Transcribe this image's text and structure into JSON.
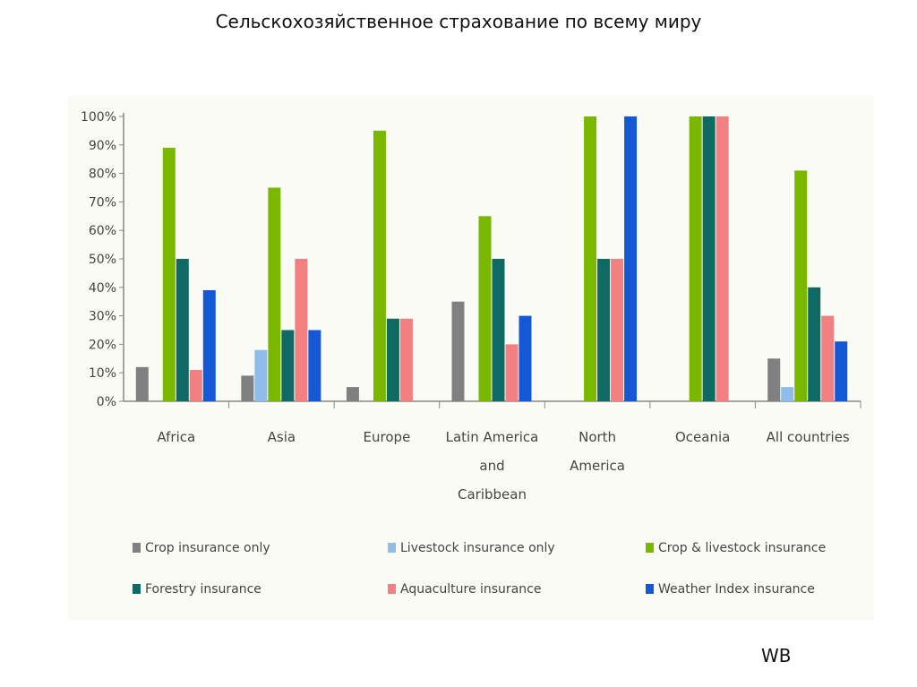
{
  "slide": {
    "title": "Сельскохозяйственное страхование по всему миру",
    "credit": "WB"
  },
  "chart_data": {
    "type": "bar",
    "title": "Сельскохозяйственное страхование по всему миру",
    "xlabel": "",
    "ylabel": "",
    "ylim": [
      0,
      100
    ],
    "yticks": [
      "0%",
      "10%",
      "20%",
      "30%",
      "40%",
      "50%",
      "60%",
      "70%",
      "80%",
      "90%",
      "100%"
    ],
    "categories": [
      [
        "Africa"
      ],
      [
        "Asia"
      ],
      [
        "Europe"
      ],
      [
        "Latin America",
        "and",
        "Caribbean"
      ],
      [
        "North",
        "America"
      ],
      [
        "Oceania"
      ],
      [
        "All countries"
      ]
    ],
    "series": [
      {
        "name": "Crop insurance only",
        "color": "#808080",
        "values": [
          12,
          9,
          5,
          35,
          0,
          0,
          15
        ]
      },
      {
        "name": "Livestock insurance only",
        "color": "#8fbce8",
        "values": [
          0,
          18,
          0,
          0,
          0,
          0,
          5
        ]
      },
      {
        "name": "Crop & livestock insurance",
        "color": "#7ab800",
        "values": [
          89,
          75,
          95,
          65,
          100,
          100,
          81
        ]
      },
      {
        "name": "Forestry insurance",
        "color": "#0e6a63",
        "values": [
          50,
          25,
          29,
          50,
          50,
          100,
          40
        ]
      },
      {
        "name": "Aquaculture insurance",
        "color": "#f28080",
        "values": [
          11,
          50,
          29,
          20,
          50,
          100,
          30
        ]
      },
      {
        "name": "Weather Index insurance",
        "color": "#1558d6",
        "values": [
          39,
          25,
          0,
          30,
          100,
          0,
          21
        ]
      }
    ],
    "legend_position": "bottom",
    "grid": false
  }
}
